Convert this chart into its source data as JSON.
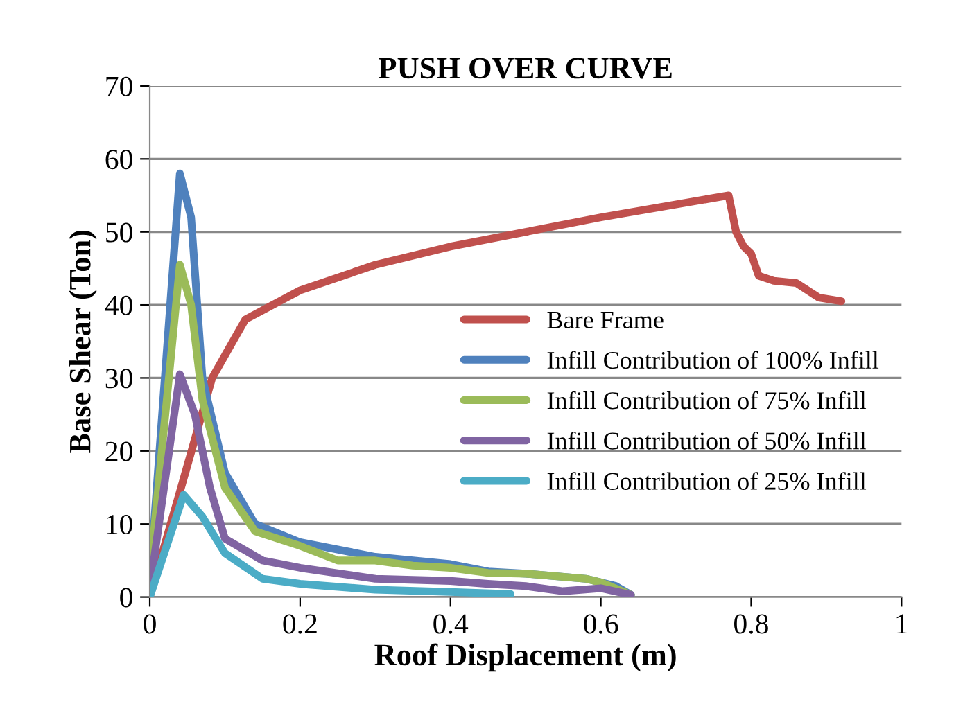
{
  "chart_data": {
    "type": "line",
    "title": "PUSH OVER CURVE",
    "xlabel": "Roof Displacement (m)",
    "ylabel": "Base Shear (Ton)",
    "xlim": [
      0,
      1
    ],
    "xticks": [
      0,
      0.2,
      0.4,
      0.6,
      0.8,
      1
    ],
    "ylim": [
      0,
      70
    ],
    "yticks": [
      0,
      10,
      20,
      30,
      40,
      50,
      60,
      70
    ],
    "grid": "y",
    "legend": "right",
    "line_style": "solid",
    "marker": "none",
    "series": [
      {
        "name": "Bare Frame",
        "color": "#c0504d",
        "x": [
          0,
          0.05,
          0.083,
          0.127,
          0.2,
          0.3,
          0.4,
          0.5,
          0.6,
          0.77,
          0.78,
          0.79,
          0.8,
          0.81,
          0.83,
          0.86,
          0.89,
          0.92
        ],
        "values": [
          0,
          18,
          30,
          38,
          42,
          45.5,
          48,
          50,
          52,
          55,
          50,
          48,
          47,
          44,
          43.3,
          43,
          41,
          40.5
        ]
      },
      {
        "name": "Infill Contribution of 100% Infill",
        "color": "#4f81bd",
        "x": [
          0,
          0.02,
          0.04,
          0.055,
          0.07,
          0.1,
          0.14,
          0.2,
          0.3,
          0.4,
          0.45,
          0.5,
          0.58,
          0.62,
          0.64
        ],
        "values": [
          2,
          30,
          58,
          52,
          30,
          17,
          10,
          7.5,
          5.5,
          4.5,
          3.5,
          3.2,
          2.5,
          1.5,
          0.3
        ]
      },
      {
        "name": "Infill Contribution of 75% Infill",
        "color": "#9bbb59",
        "x": [
          0,
          0.04,
          0.055,
          0.07,
          0.1,
          0.14,
          0.2,
          0.25,
          0.3,
          0.35,
          0.4,
          0.45,
          0.5,
          0.58,
          0.6,
          0.64
        ],
        "values": [
          3,
          45.5,
          40,
          27,
          15,
          9,
          7,
          5,
          5,
          4.3,
          4,
          3.3,
          3.2,
          2.5,
          2,
          0.3
        ]
      },
      {
        "name": "Infill Contribution of 50% Infill",
        "color": "#8064a2",
        "x": [
          0,
          0.04,
          0.06,
          0.08,
          0.1,
          0.15,
          0.2,
          0.3,
          0.4,
          0.45,
          0.5,
          0.55,
          0.6,
          0.64
        ],
        "values": [
          1,
          30.5,
          25,
          15,
          8,
          5,
          4,
          2.5,
          2.2,
          1.8,
          1.5,
          0.8,
          1.2,
          0.3
        ]
      },
      {
        "name": "Infill Contribution of 25% Infill",
        "color": "#4bacc6",
        "x": [
          0,
          0.045,
          0.07,
          0.1,
          0.15,
          0.2,
          0.3,
          0.4,
          0.48
        ],
        "values": [
          0,
          14,
          11,
          6,
          2.5,
          1.8,
          1,
          0.7,
          0.4
        ]
      }
    ]
  }
}
